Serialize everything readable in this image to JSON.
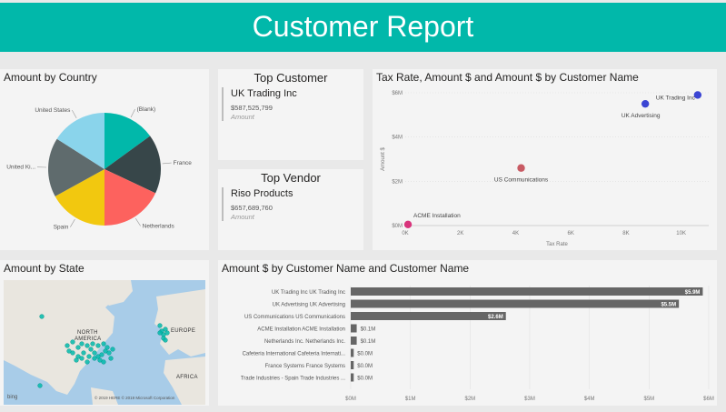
{
  "header": {
    "title": "Customer Report"
  },
  "pie": {
    "title": "Amount by Country",
    "chart_data": {
      "type": "pie",
      "title": "Amount by Country",
      "slices": [
        {
          "label": "(Blank)",
          "value": 15,
          "color": "#01b8aa"
        },
        {
          "label": "France",
          "value": 17,
          "color": "#374649"
        },
        {
          "label": "Netherlands",
          "value": 18,
          "color": "#fd625e"
        },
        {
          "label": "Spain",
          "value": 17,
          "color": "#f2c80f"
        },
        {
          "label": "United Ki...",
          "value": 17,
          "color": "#5f6b6d"
        },
        {
          "label": "United States",
          "value": 16,
          "color": "#8ad4eb"
        }
      ]
    }
  },
  "top_customer": {
    "title": "Top Customer",
    "name": "UK Trading Inc",
    "value": "$587,525,799",
    "label": "Amount"
  },
  "top_vendor": {
    "title": "Top Vendor",
    "name": "Riso Products",
    "value": "$657,689,760",
    "label": "Amount"
  },
  "scatter": {
    "title": "Tax Rate, Amount $ and Amount $ by Customer Name",
    "chart_data": {
      "type": "scatter",
      "title": "Tax Rate, Amount $ and Amount $ by Customer Name",
      "xlabel": "Tax Rate",
      "ylabel": "Amount $",
      "xlim": [
        0,
        11000
      ],
      "ylim": [
        0,
        6000000
      ],
      "x_ticks": [
        {
          "v": 0,
          "t": "0K"
        },
        {
          "v": 2000,
          "t": "2K"
        },
        {
          "v": 4000,
          "t": "4K"
        },
        {
          "v": 6000,
          "t": "6K"
        },
        {
          "v": 8000,
          "t": "8K"
        },
        {
          "v": 10000,
          "t": "10K"
        }
      ],
      "y_ticks": [
        {
          "v": 0,
          "t": "$0M"
        },
        {
          "v": 2000000,
          "t": "$2M"
        },
        {
          "v": 4000000,
          "t": "$4M"
        },
        {
          "v": 6000000,
          "t": "$6M"
        }
      ],
      "points": [
        {
          "label": "UK Trading Inc",
          "x": 10600,
          "y": 5900000,
          "color": "#3b45d3"
        },
        {
          "label": "UK Advertising",
          "x": 8700,
          "y": 5500000,
          "color": "#3b45d3"
        },
        {
          "label": "US Communications",
          "x": 4200,
          "y": 2600000,
          "color": "#c85a63"
        },
        {
          "label": "ACME Installation",
          "x": 100,
          "y": 50000,
          "color": "#d8347c"
        }
      ]
    }
  },
  "map": {
    "title": "Amount by State",
    "labels": {
      "north": "NORTH",
      "america": "AMERICA",
      "europe": "EUROPE",
      "africa": "AFRICA"
    },
    "credit": "© 2019 HERE © 2019 Microsoft Corporation",
    "bing": "bing"
  },
  "bar": {
    "title": "Amount $ by Customer Name and Customer Name",
    "chart_data": {
      "type": "bar",
      "orientation": "horizontal",
      "title": "Amount $ by Customer Name and Customer Name",
      "xlim": [
        0,
        6000000
      ],
      "x_ticks": [
        {
          "v": 0,
          "t": "$0M"
        },
        {
          "v": 1000000,
          "t": "$1M"
        },
        {
          "v": 2000000,
          "t": "$2M"
        },
        {
          "v": 3000000,
          "t": "$3M"
        },
        {
          "v": 4000000,
          "t": "$4M"
        },
        {
          "v": 5000000,
          "t": "$5M"
        },
        {
          "v": 6000000,
          "t": "$6M"
        }
      ],
      "categories": [
        "UK Trading Inc UK Trading Inc",
        "UK Advertising UK Advertising",
        "US Communications US Communications",
        "ACME Installation ACME Installation",
        "Netherlands Inc. Netherlands Inc.",
        "Cafeteria International Cafeteria Internati...",
        "France Systems France Systems",
        "Trade Industries - Spain Trade Industries ..."
      ],
      "values": [
        5900000,
        5500000,
        2600000,
        100000,
        100000,
        50000,
        50000,
        50000
      ],
      "data_labels": [
        "$5.9M",
        "$5.5M",
        "$2.6M",
        "$0.1M",
        "$0.1M",
        "$0.0M",
        "$0.0M",
        "$0.0M"
      ],
      "color": "#666666"
    }
  }
}
